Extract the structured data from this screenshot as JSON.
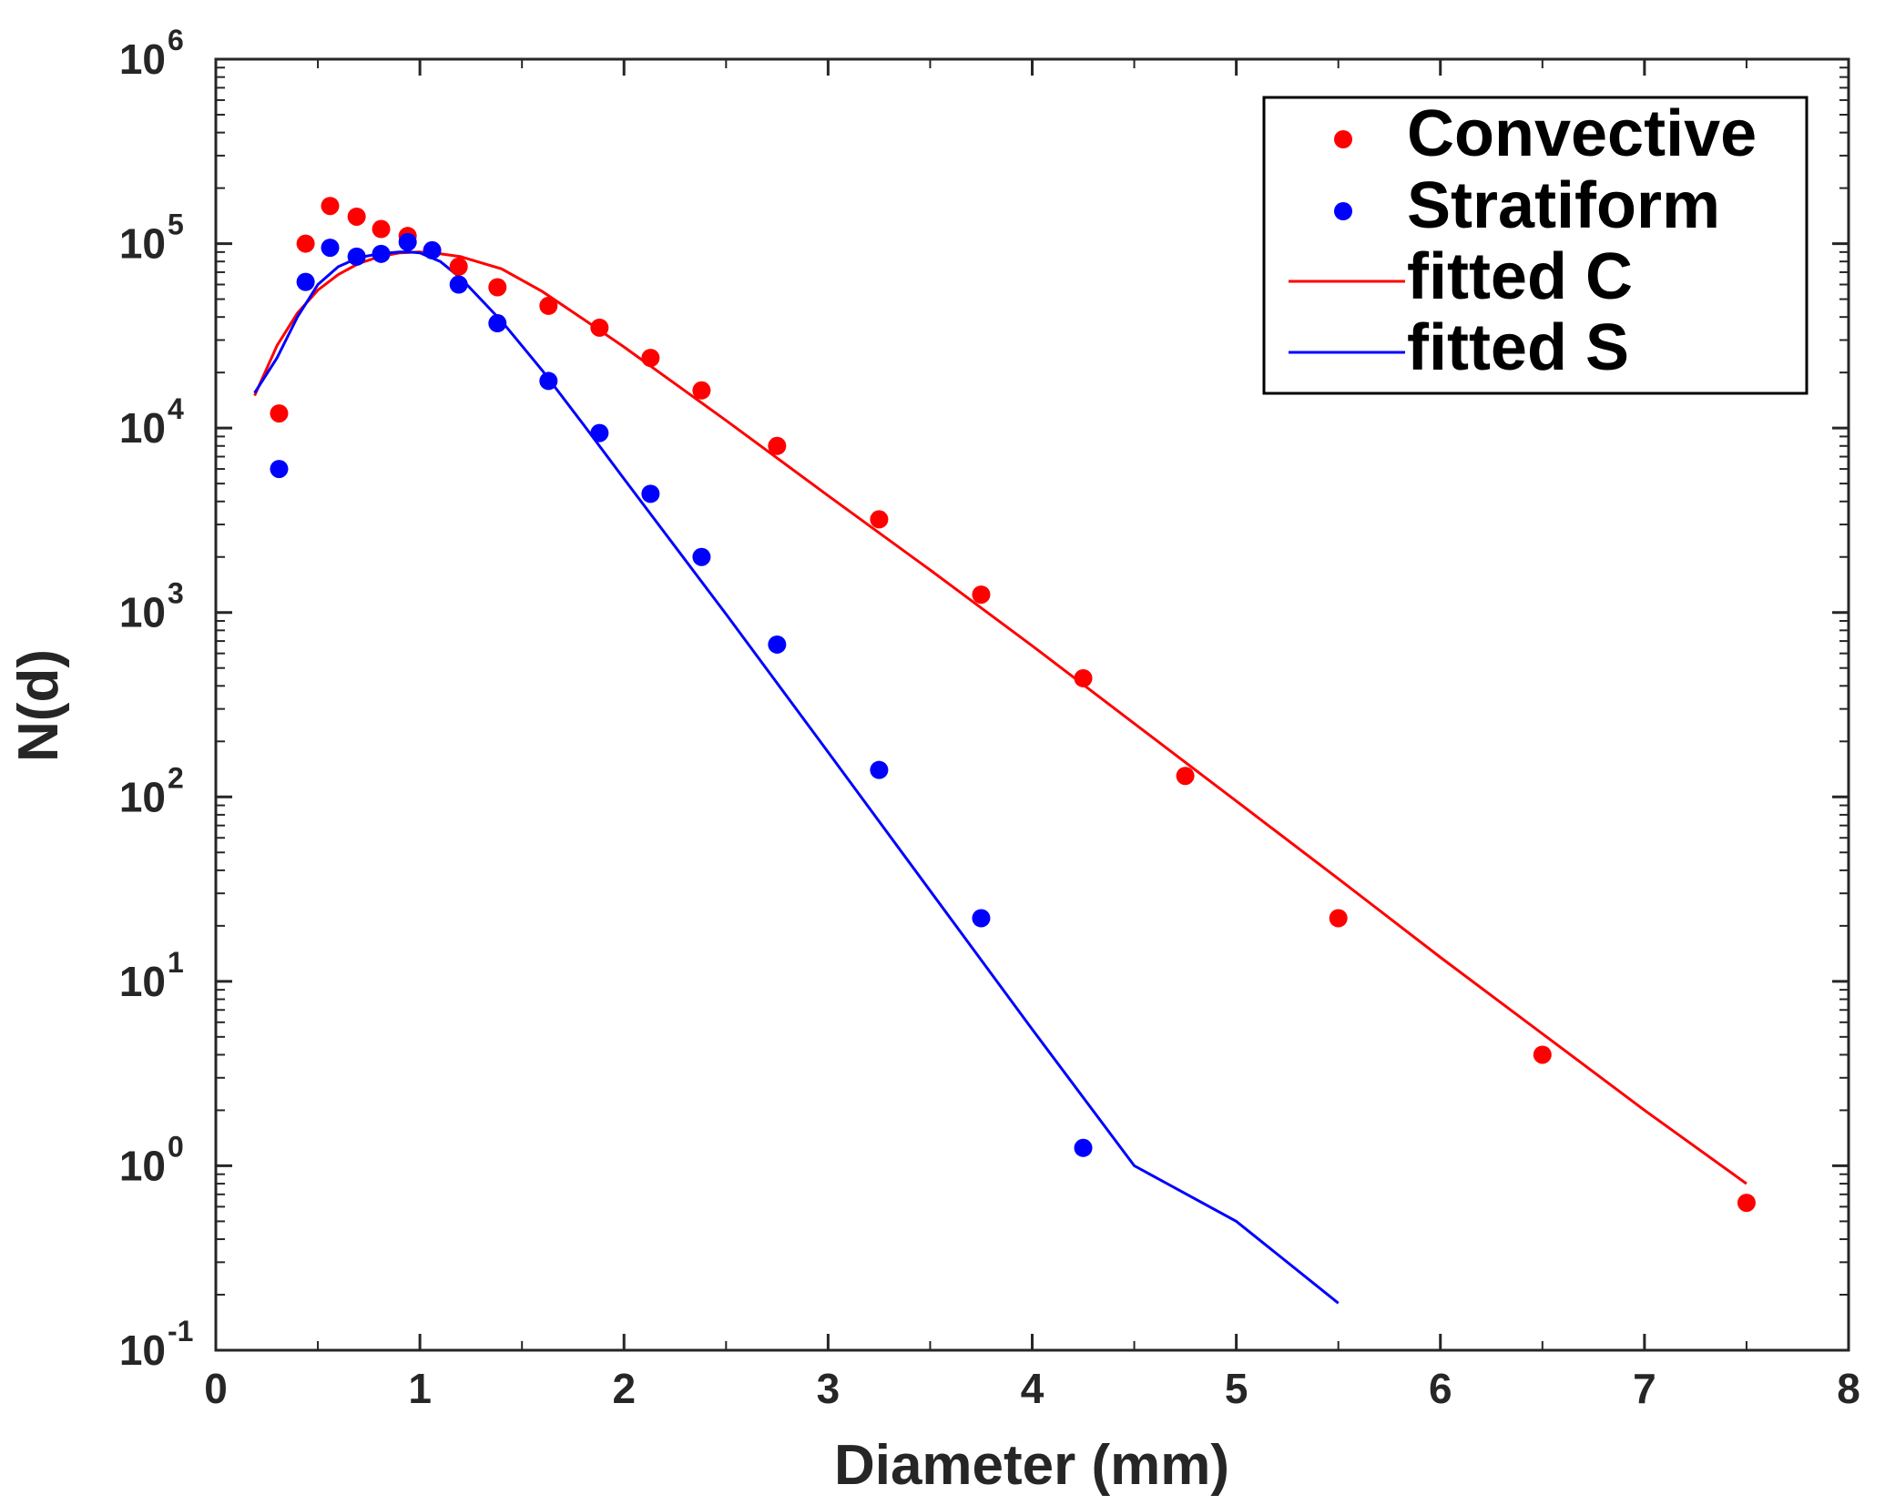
{
  "chart_data": {
    "type": "scatter",
    "title": "",
    "xlabel": "Diameter  (mm)",
    "ylabel": "N(d)",
    "xlim": [
      0,
      8
    ],
    "ylim": [
      0.1,
      1000000
    ],
    "yscale": "log",
    "grid": false,
    "legend_position": "top-right",
    "x_ticks": [
      {
        "value": 0,
        "label": "0"
      },
      {
        "value": 1,
        "label": "1"
      },
      {
        "value": 2,
        "label": "2"
      },
      {
        "value": 3,
        "label": "3"
      },
      {
        "value": 4,
        "label": "4"
      },
      {
        "value": 5,
        "label": "5"
      },
      {
        "value": 6,
        "label": "6"
      },
      {
        "value": 7,
        "label": "7"
      },
      {
        "value": 8,
        "label": "8"
      }
    ],
    "y_ticks": [
      {
        "exp": -1,
        "base": "10",
        "sup": "-1"
      },
      {
        "exp": 0,
        "base": "10",
        "sup": "0"
      },
      {
        "exp": 1,
        "base": "10",
        "sup": "1"
      },
      {
        "exp": 2,
        "base": "10",
        "sup": "2"
      },
      {
        "exp": 3,
        "base": "10",
        "sup": "3"
      },
      {
        "exp": 4,
        "base": "10",
        "sup": "4"
      },
      {
        "exp": 5,
        "base": "10",
        "sup": "5"
      },
      {
        "exp": 6,
        "base": "10",
        "sup": "6"
      }
    ],
    "series": [
      {
        "name": "Convective",
        "kind": "points",
        "color": "#ff0000",
        "x": [
          0.31,
          0.44,
          0.56,
          0.69,
          0.81,
          0.94,
          1.19,
          1.38,
          1.63,
          1.88,
          2.13,
          2.38,
          2.75,
          3.25,
          3.75,
          4.25,
          4.75,
          5.5,
          6.5,
          7.5
        ],
        "y": [
          12000,
          100000,
          160000,
          140000,
          120000,
          110000,
          75000,
          58000,
          46000,
          35000,
          24000,
          16000,
          8000,
          3200,
          1250,
          440,
          130,
          22,
          4,
          0.63
        ]
      },
      {
        "name": "Stratiform",
        "kind": "points",
        "color": "#0000ff",
        "x": [
          0.31,
          0.44,
          0.56,
          0.69,
          0.81,
          0.94,
          1.06,
          1.19,
          1.38,
          1.63,
          1.88,
          2.13,
          2.38,
          2.75,
          3.25,
          3.75,
          4.25
        ],
        "y": [
          6000,
          62000,
          95000,
          85000,
          88000,
          102000,
          92000,
          60000,
          37000,
          18000,
          9400,
          4400,
          2000,
          670,
          140,
          22,
          1.25
        ]
      },
      {
        "name": "fitted C",
        "kind": "line",
        "color": "#ff0000",
        "x": [
          0.19,
          0.3,
          0.4,
          0.5,
          0.6,
          0.7,
          0.8,
          0.9,
          1.0,
          1.1,
          1.2,
          1.4,
          1.6,
          1.8,
          2.0,
          2.5,
          3.0,
          3.5,
          4.0,
          4.5,
          5.0,
          5.5,
          6.0,
          6.5,
          7.0,
          7.5
        ],
        "y": [
          15000,
          28000,
          42000,
          56000,
          68000,
          78000,
          85000,
          89000,
          90000,
          88000,
          85000,
          73000,
          55000,
          39000,
          27500,
          11000,
          4300,
          1700,
          660,
          250,
          95,
          36,
          13.5,
          5.2,
          2.0,
          0.8
        ]
      },
      {
        "name": "fitted S",
        "kind": "line",
        "color": "#0000ff",
        "x": [
          0.19,
          0.3,
          0.4,
          0.5,
          0.6,
          0.7,
          0.8,
          0.9,
          0.95,
          1.0,
          1.1,
          1.2,
          1.4,
          1.6,
          1.8,
          2.0,
          2.5,
          3.0,
          3.5,
          4.0,
          4.5,
          5.0,
          5.5
        ],
        "y": [
          15500,
          24000,
          40000,
          60000,
          75000,
          84000,
          88000,
          90000,
          90000,
          89000,
          80000,
          65000,
          38000,
          20500,
          10500,
          5300,
          980,
          175,
          31,
          5.5,
          1.0,
          0.5,
          0.18
        ]
      }
    ]
  }
}
